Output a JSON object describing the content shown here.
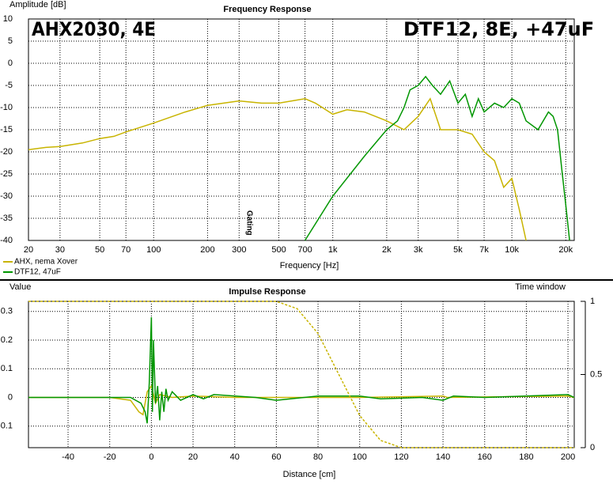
{
  "chart_data": [
    {
      "type": "line",
      "title": "Frequency Response",
      "ylabel": "Amplitude [dB]",
      "xlabel": "Frequency [Hz]",
      "xscale": "log",
      "grid": true,
      "legend": "bottom-left",
      "xlim": [
        20,
        22300
      ],
      "ylim": [
        -40,
        10
      ],
      "xticks": [
        20,
        30,
        50,
        70,
        100,
        200,
        300,
        500,
        700,
        {
          "value": 1000,
          "label": "1k"
        },
        {
          "value": 2000,
          "label": "2k"
        },
        {
          "value": 3000,
          "label": "3k"
        },
        {
          "value": 5000,
          "label": "5k"
        },
        {
          "value": 7000,
          "label": "7k"
        },
        {
          "value": 10000,
          "label": "10k"
        },
        {
          "value": 20000,
          "label": "20k"
        }
      ],
      "yticks": [
        10,
        5,
        0,
        -5,
        -10,
        -15,
        -20,
        -25,
        -30,
        -35,
        -40
      ],
      "annotations": [
        "AHX2030, 4E",
        "DTF12, 8E, +47uF",
        "Gating"
      ],
      "series": [
        {
          "name": "AHX, nema Xover",
          "color": "#c8b400",
          "x": [
            20,
            25,
            30,
            40,
            50,
            60,
            70,
            100,
            150,
            200,
            300,
            400,
            500,
            700,
            800,
            1000,
            1200,
            1500,
            2000,
            2500,
            3000,
            3500,
            4000,
            5000,
            6000,
            7000,
            8000,
            9000,
            10000,
            11000,
            12000
          ],
          "values": [
            -19.5,
            -19,
            -18.8,
            -18,
            -17,
            -16.5,
            -15.5,
            -13.5,
            -11,
            -9.5,
            -8.5,
            -9,
            -9,
            -8,
            -9,
            -11.5,
            -10.5,
            -11,
            -13,
            -15,
            -12,
            -8,
            -15,
            -15,
            -16,
            -20,
            -22,
            -28,
            -26,
            -33,
            -40
          ]
        },
        {
          "name": "DTF12, 47uF",
          "color": "#009600",
          "x": [
            700,
            1000,
            1500,
            2000,
            2300,
            2500,
            2700,
            3000,
            3300,
            3600,
            4000,
            4500,
            5000,
            5500,
            6000,
            6500,
            7000,
            8000,
            9000,
            10000,
            11000,
            12000,
            14000,
            16000,
            17000,
            18000,
            19000,
            20000,
            21000
          ],
          "values": [
            -40,
            -30,
            -21,
            -15,
            -13,
            -10,
            -6,
            -5,
            -3,
            -5,
            -7,
            -4,
            -9,
            -7,
            -12,
            -8,
            -11,
            -9,
            -10,
            -8,
            -9,
            -13,
            -15,
            -11,
            -12,
            -15,
            -24,
            -32,
            -40
          ]
        }
      ]
    },
    {
      "type": "line",
      "title": "Impulse Response",
      "ylabel": "Value",
      "y2label": "Time window",
      "xlabel": "Distance [cm]",
      "xscale": "linear",
      "grid": true,
      "xlim": [
        -59,
        203
      ],
      "ylim": [
        -0.175,
        0.335
      ],
      "y2lim": [
        0,
        1
      ],
      "xticks": [
        -40,
        -20,
        0,
        20,
        40,
        60,
        80,
        100,
        120,
        140,
        160,
        180,
        200
      ],
      "yticks": [
        0.3,
        0.2,
        0.1,
        0,
        -0.1
      ],
      "y2ticks": [
        0,
        0.5,
        1
      ],
      "series": [
        {
          "name": "AHX, nema Xover",
          "color": "#c8b400",
          "x": [
            -59,
            -20,
            -10,
            -6,
            -4,
            -2,
            0,
            2,
            4,
            10,
            20,
            40,
            100,
            140,
            142,
            200,
            203
          ],
          "values": [
            0,
            0,
            -0.01,
            -0.05,
            -0.06,
            0.02,
            0.04,
            -0.02,
            0.01,
            0,
            0.005,
            0,
            0,
            0.005,
            0,
            0.005,
            0
          ]
        },
        {
          "name": "DTF12, 47uF",
          "color": "#009600",
          "x": [
            -59,
            -10,
            -5,
            -3,
            -2,
            -1,
            0,
            0.5,
            1,
            2,
            3,
            4,
            5,
            6,
            7,
            8,
            10,
            14,
            20,
            25,
            30,
            50,
            60,
            80,
            100,
            110,
            130,
            140,
            145,
            160,
            200,
            203
          ],
          "values": [
            0,
            0,
            -0.02,
            -0.05,
            -0.09,
            0.05,
            0.28,
            -0.05,
            0.2,
            -0.02,
            0.04,
            -0.08,
            0.02,
            -0.05,
            0.03,
            -0.01,
            0.02,
            -0.01,
            0.01,
            -0.005,
            0.01,
            0,
            -0.01,
            0.005,
            0.005,
            -0.005,
            0,
            -0.01,
            0.005,
            0,
            0.01,
            0
          ]
        },
        {
          "axis": "y2",
          "color": "#c8b400",
          "dashed": true,
          "x": [
            -59,
            60,
            70,
            80,
            90,
            100,
            110,
            120,
            203
          ],
          "values": [
            1,
            1,
            0.95,
            0.78,
            0.5,
            0.22,
            0.05,
            0,
            0
          ]
        }
      ]
    }
  ]
}
